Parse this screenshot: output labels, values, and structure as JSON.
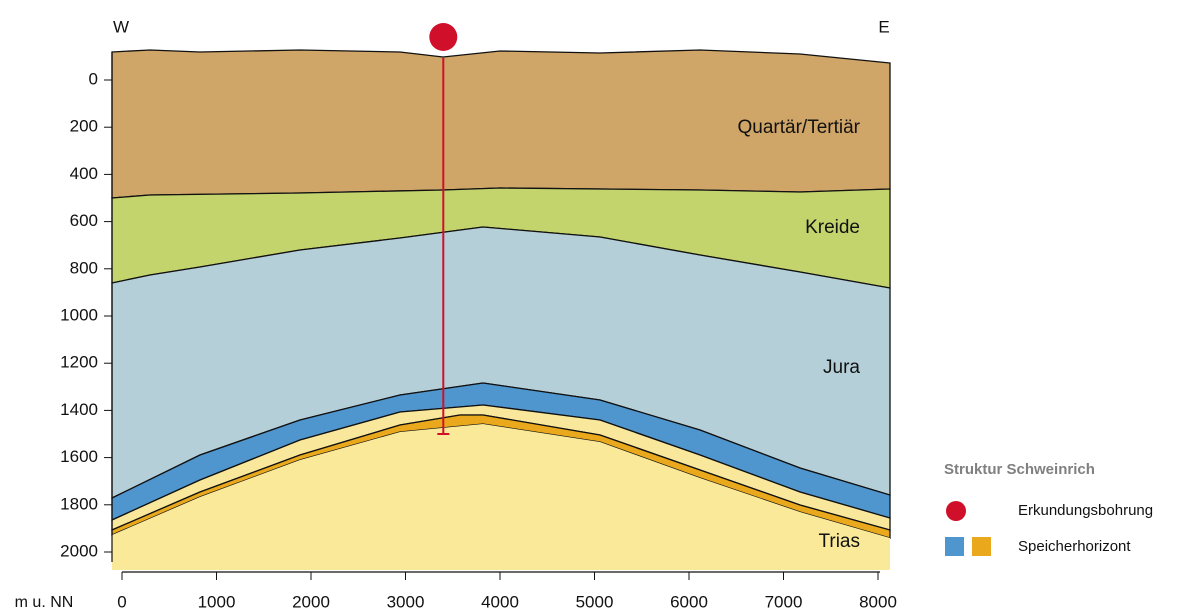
{
  "section": {
    "west_label": "W",
    "east_label": "E",
    "y_axis_label": "m u. NN",
    "xlim": [
      0,
      8000
    ],
    "ylim": [
      0,
      2000
    ],
    "xticks": [
      0,
      1000,
      2000,
      3000,
      4000,
      5000,
      6000,
      7000,
      8000
    ],
    "yticks": [
      0,
      200,
      400,
      600,
      800,
      1000,
      1200,
      1400,
      1600,
      1800,
      2000
    ],
    "layers": [
      "Quartär/Tertiär",
      "Kreide",
      "Jura",
      "Trias"
    ],
    "borehole": {
      "x": 3400,
      "depth": 1500
    }
  },
  "legend": {
    "title": "Struktur Schweinrich",
    "borehole": "Erkundungsbohrung",
    "reservoir": "Speicherhorizont"
  }
}
